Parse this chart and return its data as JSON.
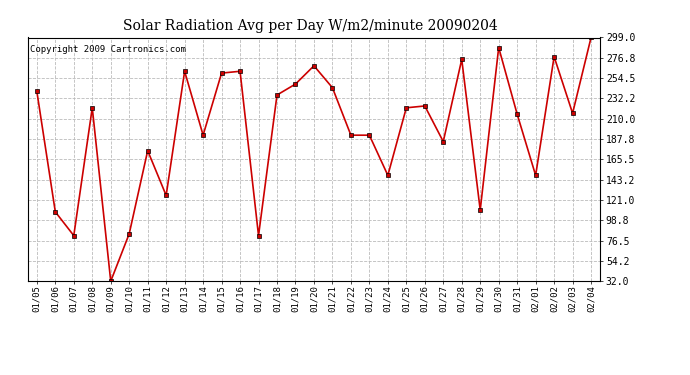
{
  "title": "Solar Radiation Avg per Day W/m2/minute 20090204",
  "copyright": "Copyright 2009 Cartronics.com",
  "dates": [
    "01/05",
    "01/06",
    "01/07",
    "01/08",
    "01/09",
    "01/10",
    "01/11",
    "01/12",
    "01/13",
    "01/14",
    "01/15",
    "01/16",
    "01/17",
    "01/18",
    "01/19",
    "01/20",
    "01/21",
    "01/22",
    "01/23",
    "01/24",
    "01/25",
    "01/26",
    "01/27",
    "01/28",
    "01/29",
    "01/30",
    "01/31",
    "02/01",
    "02/02",
    "02/03",
    "02/04"
  ],
  "values": [
    240,
    108,
    82,
    222,
    32,
    84,
    175,
    126,
    262,
    192,
    260,
    262,
    82,
    236,
    248,
    268,
    244,
    192,
    192,
    148,
    222,
    224,
    185,
    275,
    110,
    288,
    215,
    148,
    278,
    216,
    299
  ],
  "line_color": "#cc0000",
  "marker_color": "#cc0000",
  "bg_color": "#ffffff",
  "plot_bg_color": "#ffffff",
  "grid_color": "#bbbbbb",
  "yticks": [
    32.0,
    54.2,
    76.5,
    98.8,
    121.0,
    143.2,
    165.5,
    187.8,
    210.0,
    232.2,
    254.5,
    276.8,
    299.0
  ],
  "ylim": [
    32.0,
    299.0
  ],
  "title_fontsize": 10,
  "copyright_fontsize": 6.5
}
